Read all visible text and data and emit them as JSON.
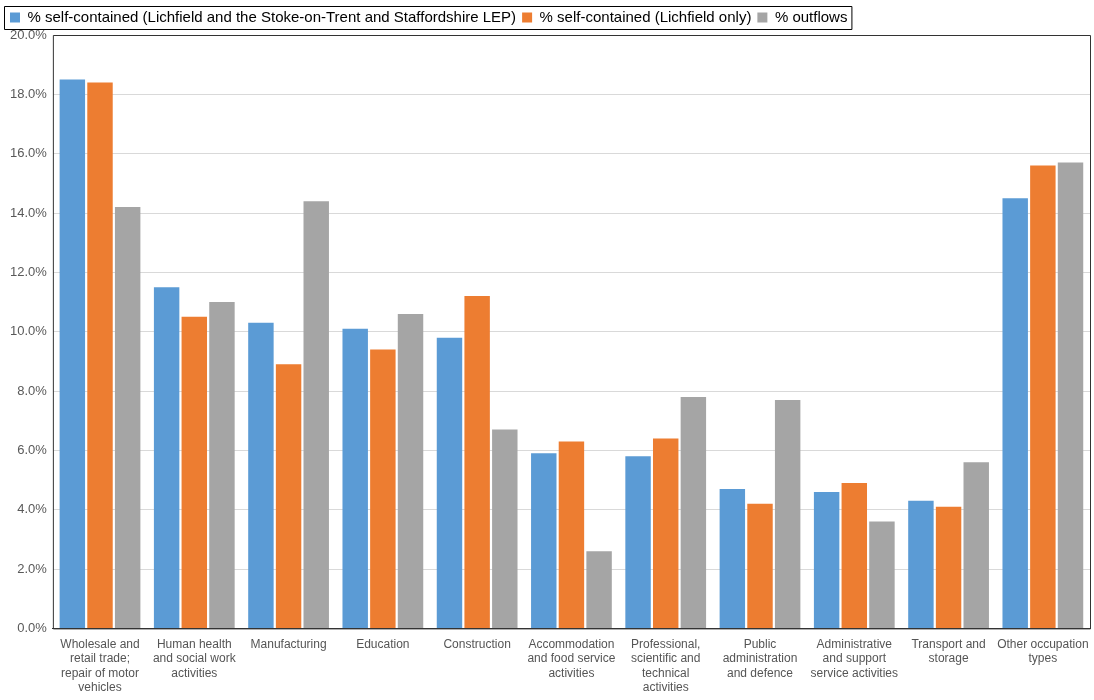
{
  "chart_data": {
    "type": "bar",
    "categories": [
      "Wholesale and retail trade; repair of motor vehicles",
      "Human health and social work activities",
      "Manufacturing",
      "Education",
      "Construction",
      "Accommodation and food service activities",
      "Professional, scientific and technical activities",
      "Public administration and defence",
      "Administrative and support service activities",
      "Transport and storage",
      "Other occupation types"
    ],
    "series": [
      {
        "name": "% self-contained (Lichfield and the Stoke-on-Trent and Staffordshire LEP)",
        "color": "#5b9bd5",
        "values": [
          18.5,
          11.5,
          10.3,
          10.1,
          9.8,
          5.9,
          5.8,
          4.7,
          4.6,
          4.3,
          14.5
        ]
      },
      {
        "name": "% self-contained (Lichfield only)",
        "color": "#ed7d31",
        "values": [
          18.4,
          10.5,
          8.9,
          9.4,
          11.2,
          6.3,
          6.4,
          4.2,
          4.9,
          4.1,
          15.6
        ]
      },
      {
        "name": "% outflows",
        "color": "#a5a5a5",
        "values": [
          14.2,
          11.0,
          14.4,
          10.6,
          6.7,
          2.6,
          7.8,
          7.7,
          3.6,
          5.6,
          15.7
        ]
      }
    ],
    "ylim": [
      0,
      20
    ],
    "yticks": [
      {
        "value": 0,
        "label": "0.0%"
      },
      {
        "value": 2,
        "label": "2.0%"
      },
      {
        "value": 4,
        "label": "4.0%"
      },
      {
        "value": 6,
        "label": "6.0%"
      },
      {
        "value": 8,
        "label": "8.0%"
      },
      {
        "value": 10,
        "label": "10.0%"
      },
      {
        "value": 12,
        "label": "12.0%"
      },
      {
        "value": 14,
        "label": "14.0%"
      },
      {
        "value": 16,
        "label": "16.0%"
      },
      {
        "value": 18,
        "label": "18.0%"
      },
      {
        "value": 20,
        "label": "20.0%"
      }
    ],
    "grid": "y",
    "legend": "top"
  }
}
